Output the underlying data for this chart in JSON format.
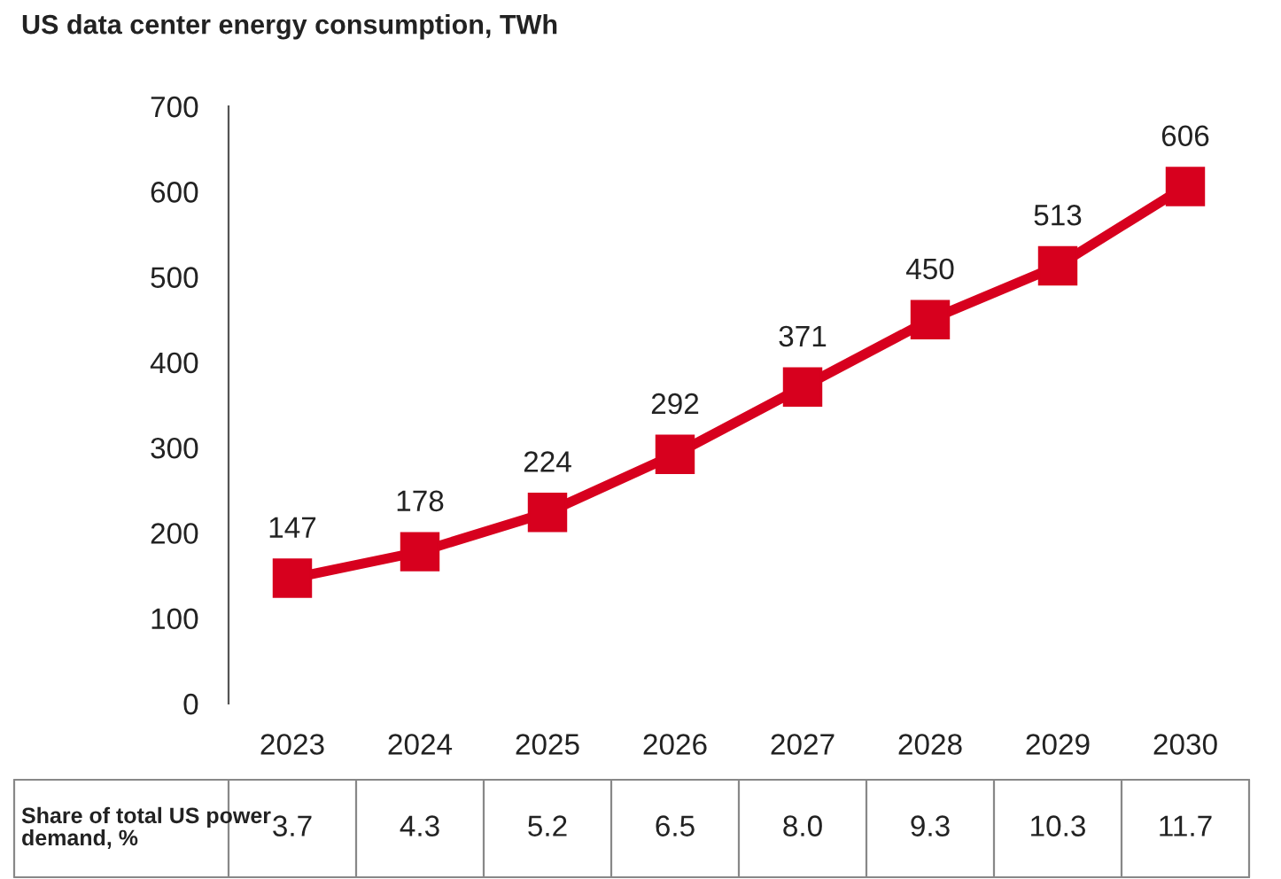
{
  "chart_data": {
    "type": "line",
    "title": "US data center energy consumption, TWh",
    "categories": [
      "2023",
      "2024",
      "2025",
      "2026",
      "2027",
      "2028",
      "2029",
      "2030"
    ],
    "series": [
      {
        "color": "#d7001e",
        "values": [
          147,
          178,
          224,
          292,
          371,
          450,
          513,
          606
        ]
      }
    ],
    "ylim": [
      0,
      700
    ],
    "yticks": [
      0,
      100,
      200,
      300,
      400,
      500,
      600,
      700
    ],
    "marker": "square",
    "line_style": "solid",
    "data_labels": true,
    "grid": false,
    "annotations": [
      "Share of total US power demand, %",
      "3.7",
      "4.3",
      "5.2",
      "6.5",
      "8.0",
      "9.3",
      "10.3",
      "11.7"
    ]
  }
}
